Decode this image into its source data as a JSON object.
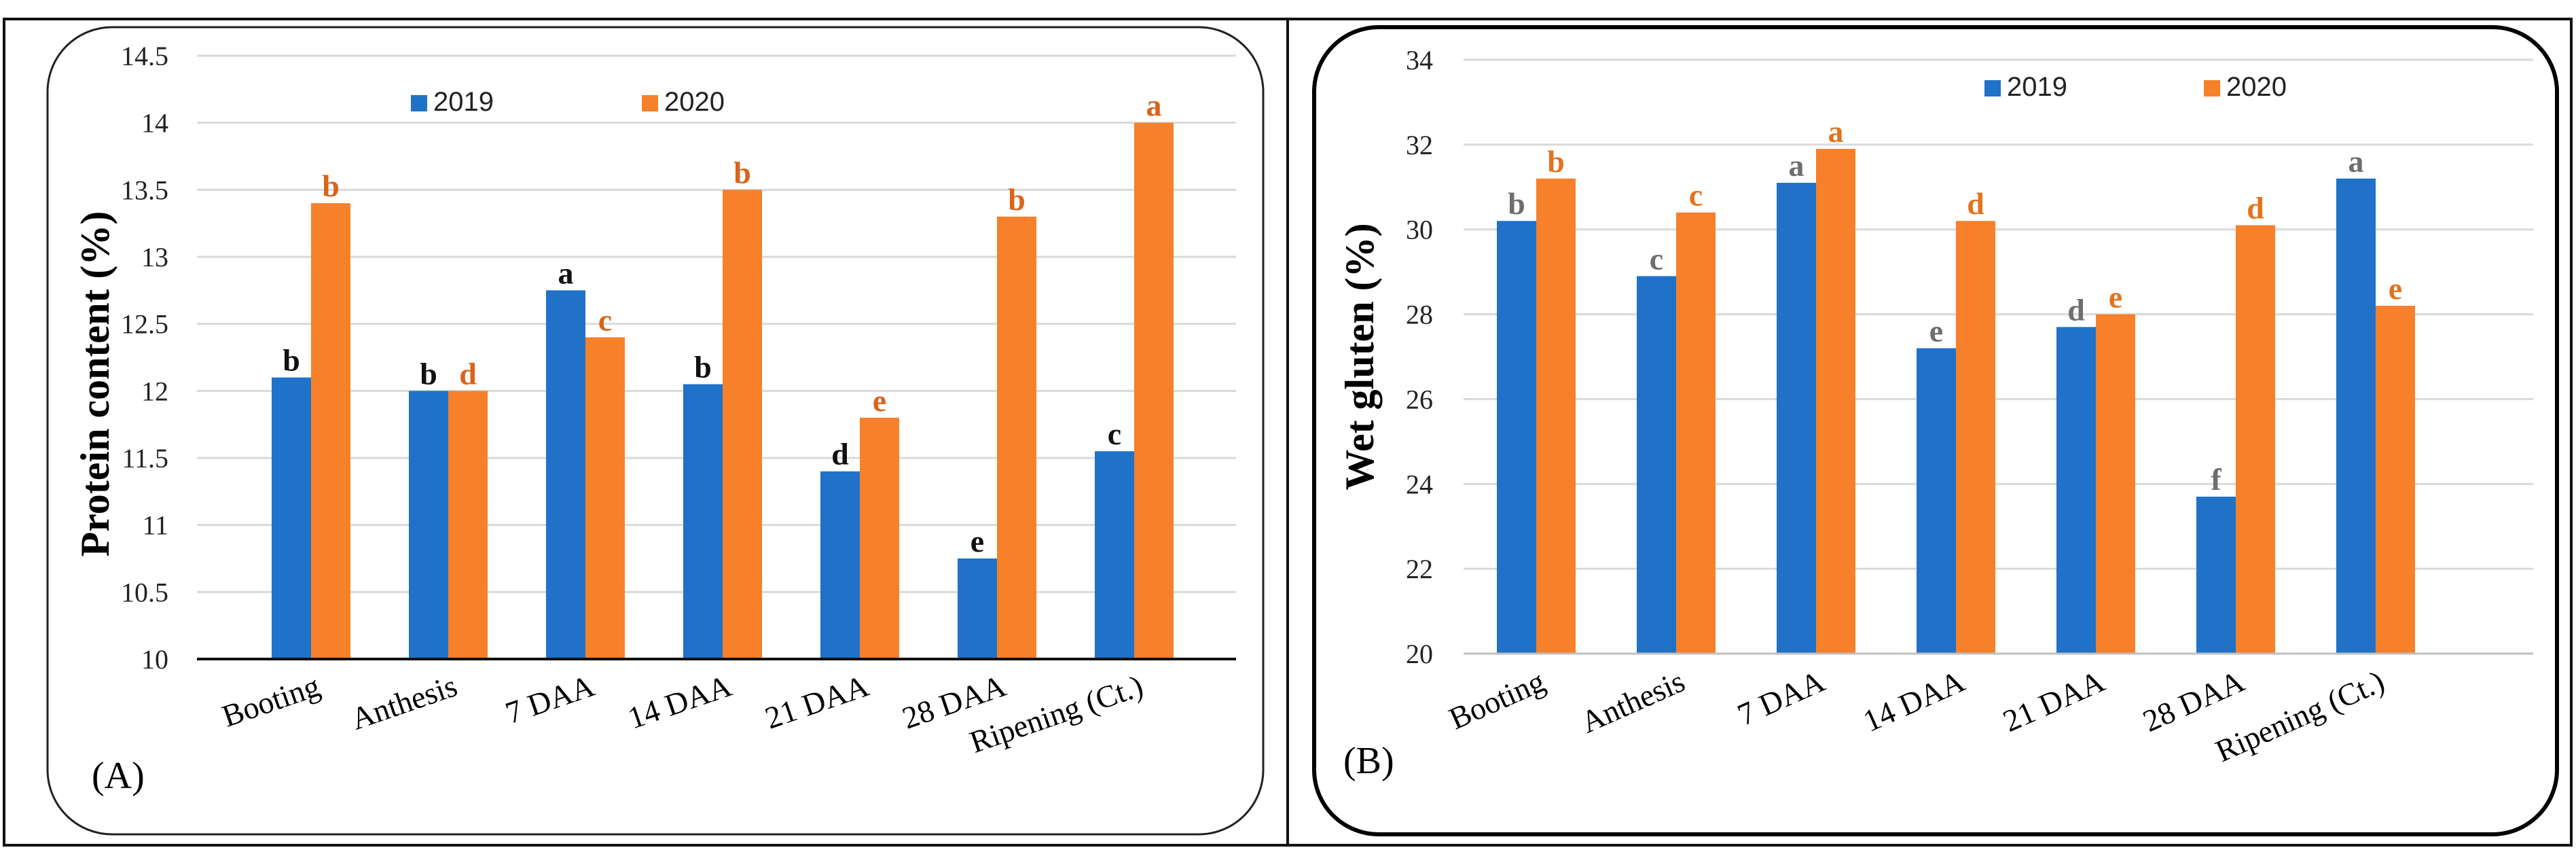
{
  "colors": {
    "series_2019": "#1f72c8",
    "series_2020": "#f7802a",
    "sig_2019_A": "#111111",
    "sig_2020_A": "#d9641a",
    "sig_2019_B": "#6e6e6e",
    "sig_2020_B": "#e4731e",
    "grid": "#d9d9d9",
    "axis": "#111111"
  },
  "chart_data": [
    {
      "type": "bar",
      "panel_label": "(A)",
      "ylabel": "Protein content (%)",
      "xlabel": "",
      "ylim": [
        10,
        14.5
      ],
      "yticks": [
        10,
        10.5,
        11,
        11.5,
        12,
        12.5,
        13,
        13.5,
        14,
        14.5
      ],
      "grid": true,
      "legend_position": "top-center",
      "categories": [
        "Booting",
        "Anthesis",
        "7 DAA",
        "14 DAA",
        "21 DAA",
        "28 DAA",
        "Ripening (Ct.)"
      ],
      "series": [
        {
          "name": "2019",
          "values": [
            12.1,
            12.0,
            12.75,
            12.05,
            11.4,
            10.75,
            11.55
          ],
          "labels": [
            "b",
            "b",
            "a",
            "b",
            "d",
            "e",
            "c"
          ]
        },
        {
          "name": "2020",
          "values": [
            13.4,
            12.0,
            12.4,
            13.5,
            11.8,
            13.3,
            14.0
          ],
          "labels": [
            "b",
            "d",
            "c",
            "b",
            "e",
            "b",
            "a"
          ]
        }
      ]
    },
    {
      "type": "bar",
      "panel_label": "(B)",
      "ylabel": "Wet gluten (%)",
      "xlabel": "",
      "ylim": [
        20,
        34
      ],
      "yticks": [
        20,
        22,
        24,
        26,
        28,
        30,
        32,
        34
      ],
      "grid": true,
      "legend_position": "top-center",
      "categories": [
        "Booting",
        "Anthesis",
        "7 DAA",
        "14 DAA",
        "21 DAA",
        "28 DAA",
        "Ripening (Ct.)"
      ],
      "series": [
        {
          "name": "2019",
          "values": [
            30.2,
            28.9,
            31.1,
            27.2,
            27.7,
            23.7,
            31.2
          ],
          "labels": [
            "b",
            "c",
            "a",
            "e",
            "d",
            "f",
            "a"
          ]
        },
        {
          "name": "2020",
          "values": [
            31.2,
            30.4,
            31.9,
            30.2,
            28.0,
            30.1,
            28.2
          ],
          "labels": [
            "b",
            "c",
            "a",
            "d",
            "e",
            "d",
            "e"
          ]
        }
      ]
    }
  ]
}
